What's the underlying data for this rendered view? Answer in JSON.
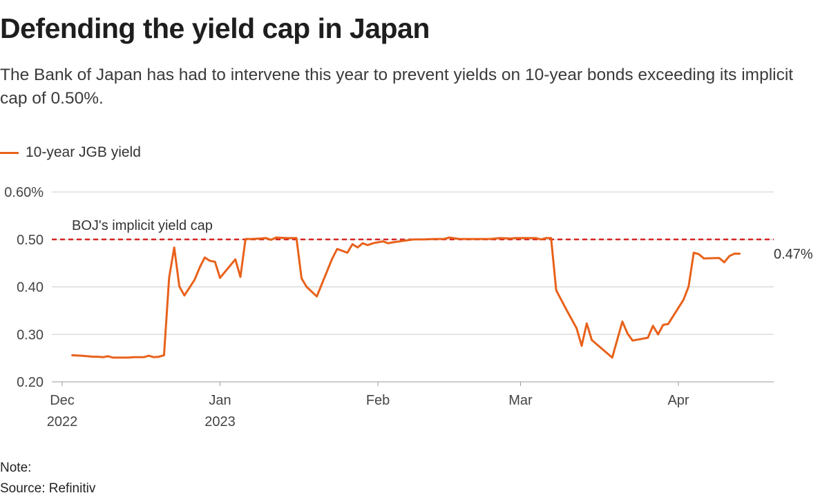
{
  "title": "Defending the yield cap in Japan",
  "subtitle": "The Bank of Japan has had to intervene this year to prevent yields on 10-year bonds exceeding its implicit cap of 0.50%.",
  "legend": {
    "label": "10-year JGB yield",
    "color": "#e8611a"
  },
  "note": "Note:",
  "source": "Source: Refinitiv",
  "chart_data": {
    "type": "line",
    "title": "Defending the yield cap in Japan",
    "xlabel": "",
    "ylabel": "",
    "ylim": [
      0.2,
      0.6
    ],
    "y_ticks": [
      {
        "value": 0.6,
        "label": "0.60%"
      },
      {
        "value": 0.5,
        "label": "0.50"
      },
      {
        "value": 0.4,
        "label": "0.40"
      },
      {
        "value": 0.3,
        "label": "0.30"
      },
      {
        "value": 0.2,
        "label": "0.20"
      }
    ],
    "x_domain": [
      "2022-12-01",
      "2023-04-17"
    ],
    "x_ticks": [
      {
        "date": "2022-12-01",
        "label": "Dec",
        "sublabel": "2022"
      },
      {
        "date": "2023-01-01",
        "label": "Jan",
        "sublabel": "2023"
      },
      {
        "date": "2023-02-01",
        "label": "Feb",
        "sublabel": ""
      },
      {
        "date": "2023-03-01",
        "label": "Mar",
        "sublabel": ""
      },
      {
        "date": "2023-04-01",
        "label": "Apr",
        "sublabel": ""
      }
    ],
    "grid": true,
    "reference_line": {
      "value": 0.5,
      "label": "BOJ's implicit yield cap",
      "color": "#d62728"
    },
    "end_label": "0.47%",
    "series": [
      {
        "name": "10-year JGB yield",
        "color": "#e8611a",
        "points": [
          [
            "2022-12-03",
            0.256
          ],
          [
            "2022-12-05",
            0.255
          ],
          [
            "2022-12-07",
            0.253
          ],
          [
            "2022-12-08",
            0.253
          ],
          [
            "2022-12-09",
            0.252
          ],
          [
            "2022-12-10",
            0.254
          ],
          [
            "2022-12-11",
            0.251
          ],
          [
            "2022-12-12",
            0.251
          ],
          [
            "2022-12-13",
            0.251
          ],
          [
            "2022-12-14",
            0.251
          ],
          [
            "2022-12-15",
            0.252
          ],
          [
            "2022-12-16",
            0.252
          ],
          [
            "2022-12-17",
            0.252
          ],
          [
            "2022-12-18",
            0.255
          ],
          [
            "2022-12-19",
            0.252
          ],
          [
            "2022-12-20",
            0.253
          ],
          [
            "2022-12-21",
            0.256
          ],
          [
            "2022-12-22",
            0.419
          ],
          [
            "2022-12-23",
            0.483
          ],
          [
            "2022-12-24",
            0.401
          ],
          [
            "2022-12-25",
            0.382
          ],
          [
            "2022-12-27",
            0.415
          ],
          [
            "2022-12-28",
            0.441
          ],
          [
            "2022-12-29",
            0.462
          ],
          [
            "2022-12-30",
            0.455
          ],
          [
            "2022-12-31",
            0.453
          ],
          [
            "2023-01-01",
            0.419
          ],
          [
            "2023-01-04",
            0.458
          ],
          [
            "2023-01-05",
            0.421
          ],
          [
            "2023-01-06",
            0.501
          ],
          [
            "2023-01-07",
            0.501
          ],
          [
            "2023-01-09",
            0.502
          ],
          [
            "2023-01-10",
            0.503
          ],
          [
            "2023-01-11",
            0.499
          ],
          [
            "2023-01-12",
            0.504
          ],
          [
            "2023-01-14",
            0.503
          ],
          [
            "2023-01-16",
            0.503
          ],
          [
            "2023-01-17",
            0.418
          ],
          [
            "2023-01-18",
            0.4
          ],
          [
            "2023-01-20",
            0.38
          ],
          [
            "2023-01-22",
            0.433
          ],
          [
            "2023-01-23",
            0.459
          ],
          [
            "2023-01-24",
            0.48
          ],
          [
            "2023-01-26",
            0.472
          ],
          [
            "2023-01-27",
            0.49
          ],
          [
            "2023-01-28",
            0.483
          ],
          [
            "2023-01-29",
            0.492
          ],
          [
            "2023-01-30",
            0.488
          ],
          [
            "2023-01-31",
            0.492
          ],
          [
            "2023-02-02",
            0.496
          ],
          [
            "2023-02-03",
            0.492
          ],
          [
            "2023-02-04",
            0.494
          ],
          [
            "2023-02-06",
            0.497
          ],
          [
            "2023-02-08",
            0.5
          ],
          [
            "2023-02-10",
            0.5
          ],
          [
            "2023-02-12",
            0.501
          ],
          [
            "2023-02-14",
            0.501
          ],
          [
            "2023-02-15",
            0.504
          ],
          [
            "2023-02-17",
            0.501
          ],
          [
            "2023-02-19",
            0.501
          ],
          [
            "2023-02-21",
            0.501
          ],
          [
            "2023-02-23",
            0.501
          ],
          [
            "2023-02-25",
            0.503
          ],
          [
            "2023-02-27",
            0.502
          ],
          [
            "2023-02-28",
            0.503
          ],
          [
            "2023-03-02",
            0.503
          ],
          [
            "2023-03-04",
            0.503
          ],
          [
            "2023-03-05",
            0.5
          ],
          [
            "2023-03-06",
            0.503
          ],
          [
            "2023-03-07",
            0.503
          ],
          [
            "2023-03-08",
            0.393
          ],
          [
            "2023-03-10",
            0.352
          ],
          [
            "2023-03-12",
            0.313
          ],
          [
            "2023-03-13",
            0.276
          ],
          [
            "2023-03-14",
            0.323
          ],
          [
            "2023-03-15",
            0.288
          ],
          [
            "2023-03-19",
            0.251
          ],
          [
            "2023-03-21",
            0.327
          ],
          [
            "2023-03-22",
            0.302
          ],
          [
            "2023-03-23",
            0.287
          ],
          [
            "2023-03-26",
            0.293
          ],
          [
            "2023-03-27",
            0.318
          ],
          [
            "2023-03-28",
            0.3
          ],
          [
            "2023-03-29",
            0.32
          ],
          [
            "2023-03-30",
            0.322
          ],
          [
            "2023-04-02",
            0.373
          ],
          [
            "2023-04-03",
            0.401
          ],
          [
            "2023-04-04",
            0.472
          ],
          [
            "2023-04-05",
            0.469
          ],
          [
            "2023-04-06",
            0.46
          ],
          [
            "2023-04-09",
            0.461
          ],
          [
            "2023-04-10",
            0.452
          ],
          [
            "2023-04-11",
            0.465
          ],
          [
            "2023-04-12",
            0.47
          ],
          [
            "2023-04-13",
            0.47
          ]
        ]
      }
    ]
  }
}
